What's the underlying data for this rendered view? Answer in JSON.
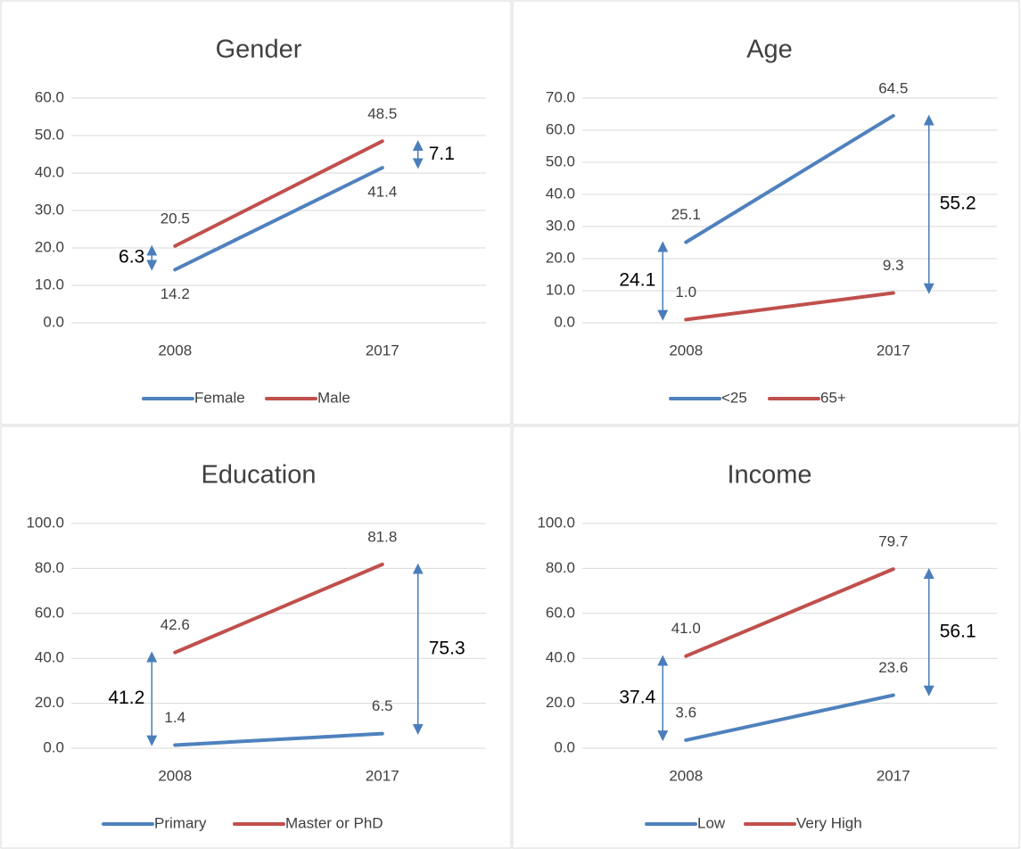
{
  "chart_data": [
    {
      "type": "line",
      "title": "Gender",
      "categories": [
        "2008",
        "2017"
      ],
      "series": [
        {
          "name": "Female",
          "color": "#4f81bd",
          "values": [
            14.2,
            41.4
          ]
        },
        {
          "name": "Male",
          "color": "#c0504d",
          "values": [
            20.5,
            48.5
          ]
        }
      ],
      "ylim": [
        0,
        60
      ],
      "yticks": [
        {
          "value": 0,
          "label": "0.0"
        },
        {
          "value": 10,
          "label": "10.0"
        },
        {
          "value": 20,
          "label": "20.0"
        },
        {
          "value": 30,
          "label": "30.0"
        },
        {
          "value": 40,
          "label": "40.0"
        },
        {
          "value": 50,
          "label": "50.0"
        },
        {
          "value": 60,
          "label": "60.0"
        }
      ],
      "gaps": [
        6.3,
        7.1
      ],
      "grid": true,
      "legend": "bottom"
    },
    {
      "type": "line",
      "title": "Age",
      "categories": [
        "2008",
        "2017"
      ],
      "series": [
        {
          "name": "<25",
          "color": "#4f81bd",
          "values": [
            25.1,
            64.5
          ]
        },
        {
          "name": "65+",
          "color": "#c0504d",
          "values": [
            1,
            9.3
          ],
          "value_labels": [
            "1.0",
            "9.3"
          ]
        }
      ],
      "ylim": [
        0,
        70
      ],
      "yticks": [
        {
          "value": 0,
          "label": "0.0"
        },
        {
          "value": 10,
          "label": "10.0"
        },
        {
          "value": 20,
          "label": "20.0"
        },
        {
          "value": 30,
          "label": "30.0"
        },
        {
          "value": 40,
          "label": "40.0"
        },
        {
          "value": 50,
          "label": "50.0"
        },
        {
          "value": 60,
          "label": "60.0"
        },
        {
          "value": 70,
          "label": "70.0"
        }
      ],
      "gaps": [
        24.1,
        55.2
      ],
      "grid": true,
      "legend": "bottom"
    },
    {
      "type": "line",
      "title": "Education",
      "categories": [
        "2008",
        "2017"
      ],
      "series": [
        {
          "name": "Primary",
          "color": "#4f81bd",
          "values": [
            1.4,
            6.5
          ]
        },
        {
          "name": "Master or PhD",
          "color": "#c0504d",
          "values": [
            42.6,
            81.8
          ]
        }
      ],
      "ylim": [
        0,
        100
      ],
      "yticks": [
        {
          "value": 0,
          "label": "0.0"
        },
        {
          "value": 20,
          "label": "20.0"
        },
        {
          "value": 40,
          "label": "40.0"
        },
        {
          "value": 60,
          "label": "60.0"
        },
        {
          "value": 80,
          "label": "80.0"
        },
        {
          "value": 100,
          "label": "100.0"
        }
      ],
      "gaps": [
        41.2,
        75.3
      ],
      "grid": true,
      "legend": "bottom"
    },
    {
      "type": "line",
      "title": "Income",
      "categories": [
        "2008",
        "2017"
      ],
      "series": [
        {
          "name": "Low",
          "color": "#4f81bd",
          "values": [
            3.6,
            23.6
          ]
        },
        {
          "name": "Very High",
          "color": "#c0504d",
          "values": [
            41,
            79.7
          ],
          "value_labels": [
            "41.0",
            "79.7"
          ]
        }
      ],
      "ylim": [
        0,
        100
      ],
      "yticks": [
        {
          "value": 0,
          "label": "0.0"
        },
        {
          "value": 20,
          "label": "20.0"
        },
        {
          "value": 40,
          "label": "40.0"
        },
        {
          "value": 60,
          "label": "60.0"
        },
        {
          "value": 80,
          "label": "80.0"
        },
        {
          "value": 100,
          "label": "100.0"
        }
      ],
      "gaps": [
        37.4,
        56.1
      ],
      "grid": true,
      "legend": "bottom"
    }
  ]
}
